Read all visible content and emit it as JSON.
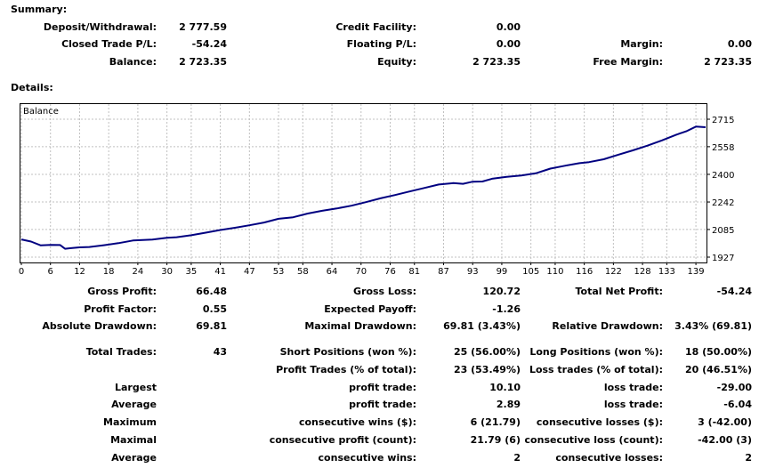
{
  "summary": {
    "heading": "Summary:",
    "deposit_label": "Deposit/Withdrawal:",
    "deposit_value": "2 777.59",
    "credit_label": "Credit Facility:",
    "credit_value": "0.00",
    "closed_label": "Closed Trade P/L:",
    "closed_value": "-54.24",
    "floating_label": "Floating P/L:",
    "floating_value": "0.00",
    "margin_label": "Margin:",
    "margin_value": "0.00",
    "balance_label": "Balance:",
    "balance_value": "2 723.35",
    "equity_label": "Equity:",
    "equity_value": "2 723.35",
    "free_margin_label": "Free Margin:",
    "free_margin_value": "2 723.35"
  },
  "details": {
    "heading": "Details:"
  },
  "chart_data": {
    "type": "line",
    "title": "Balance",
    "xlabel": "",
    "ylabel": "",
    "x_ticks": [
      "0",
      "6",
      "12",
      "18",
      "24",
      "30",
      "35",
      "41",
      "47",
      "53",
      "58",
      "64",
      "70",
      "76",
      "81",
      "87",
      "93",
      "99",
      "105",
      "110",
      "116",
      "122",
      "128",
      "133",
      "139"
    ],
    "y_ticks": [
      "2715",
      "2558",
      "2400",
      "2242",
      "2085",
      "1927"
    ],
    "xlim": [
      0,
      141
    ],
    "ylim": [
      1927,
      2715
    ],
    "grid": true,
    "series": [
      {
        "x": [
          0,
          2,
          4,
          6,
          8,
          9,
          10,
          12,
          14,
          17,
          20,
          23,
          27,
          30,
          32,
          35,
          38,
          41,
          44,
          47,
          50,
          53,
          56,
          59,
          62,
          65,
          68,
          71,
          74,
          77,
          80,
          83,
          86,
          89,
          91,
          93,
          95,
          97,
          100,
          103,
          106,
          109,
          112,
          115,
          117,
          120,
          123,
          126,
          129,
          132,
          135,
          137,
          139,
          141
        ],
        "values": [
          2028,
          2016,
          1994,
          1997,
          1996,
          1975,
          1978,
          1983,
          1985,
          1995,
          2007,
          2022,
          2027,
          2038,
          2041,
          2052,
          2067,
          2082,
          2095,
          2109,
          2125,
          2146,
          2155,
          2176,
          2192,
          2205,
          2221,
          2241,
          2263,
          2282,
          2302,
          2322,
          2342,
          2350,
          2346,
          2358,
          2359,
          2375,
          2386,
          2393,
          2406,
          2433,
          2449,
          2464,
          2470,
          2486,
          2512,
          2537,
          2564,
          2594,
          2627,
          2646,
          2673,
          2669
        ]
      }
    ]
  },
  "stats": {
    "gross_profit_label": "Gross Profit:",
    "gross_profit_value": "66.48",
    "gross_loss_label": "Gross Loss:",
    "gross_loss_value": "120.72",
    "total_net_label": "Total Net Profit:",
    "total_net_value": "-54.24",
    "profit_factor_label": "Profit Factor:",
    "profit_factor_value": "0.55",
    "expected_payoff_label": "Expected Payoff:",
    "expected_payoff_value": "-1.26",
    "abs_dd_label": "Absolute Drawdown:",
    "abs_dd_value": "69.81",
    "max_dd_label": "Maximal Drawdown:",
    "max_dd_value": "69.81 (3.43%)",
    "rel_dd_label": "Relative Drawdown:",
    "rel_dd_value": "3.43% (69.81)",
    "total_trades_label": "Total Trades:",
    "total_trades_value": "43",
    "short_label": "Short Positions (won %):",
    "short_value": "25 (56.00%)",
    "long_label": "Long Positions (won %):",
    "long_value": "18 (50.00%)",
    "profit_trades_label": "Profit Trades (% of total):",
    "profit_trades_value": "23 (53.49%)",
    "loss_trades_label": "Loss trades (% of total):",
    "loss_trades_value": "20 (46.51%)",
    "largest_label": "Largest",
    "largest_pt_label": "profit trade:",
    "largest_pt_value": "10.10",
    "largest_lt_label": "loss trade:",
    "largest_lt_value": "-29.00",
    "average_label": "Average",
    "average_pt_label": "profit trade:",
    "average_pt_value": "2.89",
    "average_lt_label": "loss trade:",
    "average_lt_value": "-6.04",
    "maximum_label": "Maximum",
    "max_cw_label": "consecutive wins ($):",
    "max_cw_value": "6 (21.79)",
    "max_cl_label": "consecutive losses ($):",
    "max_cl_value": "3 (-42.00)",
    "maximal_label": "Maximal",
    "maximal_cp_label": "consecutive profit (count):",
    "maximal_cp_value": "21.79 (6)",
    "maximal_cl_label": "consecutive loss (count):",
    "maximal_cl_value": "-42.00 (3)",
    "average2_label": "Average",
    "avg_cw_label": "consecutive wins:",
    "avg_cw_value": "2",
    "avg_cl_label": "consecutive losses:",
    "avg_cl_value": "2"
  },
  "colors": {
    "line": "#000080",
    "grid": "#c0c0c0",
    "text": "#000000",
    "background": "#ffffff"
  }
}
